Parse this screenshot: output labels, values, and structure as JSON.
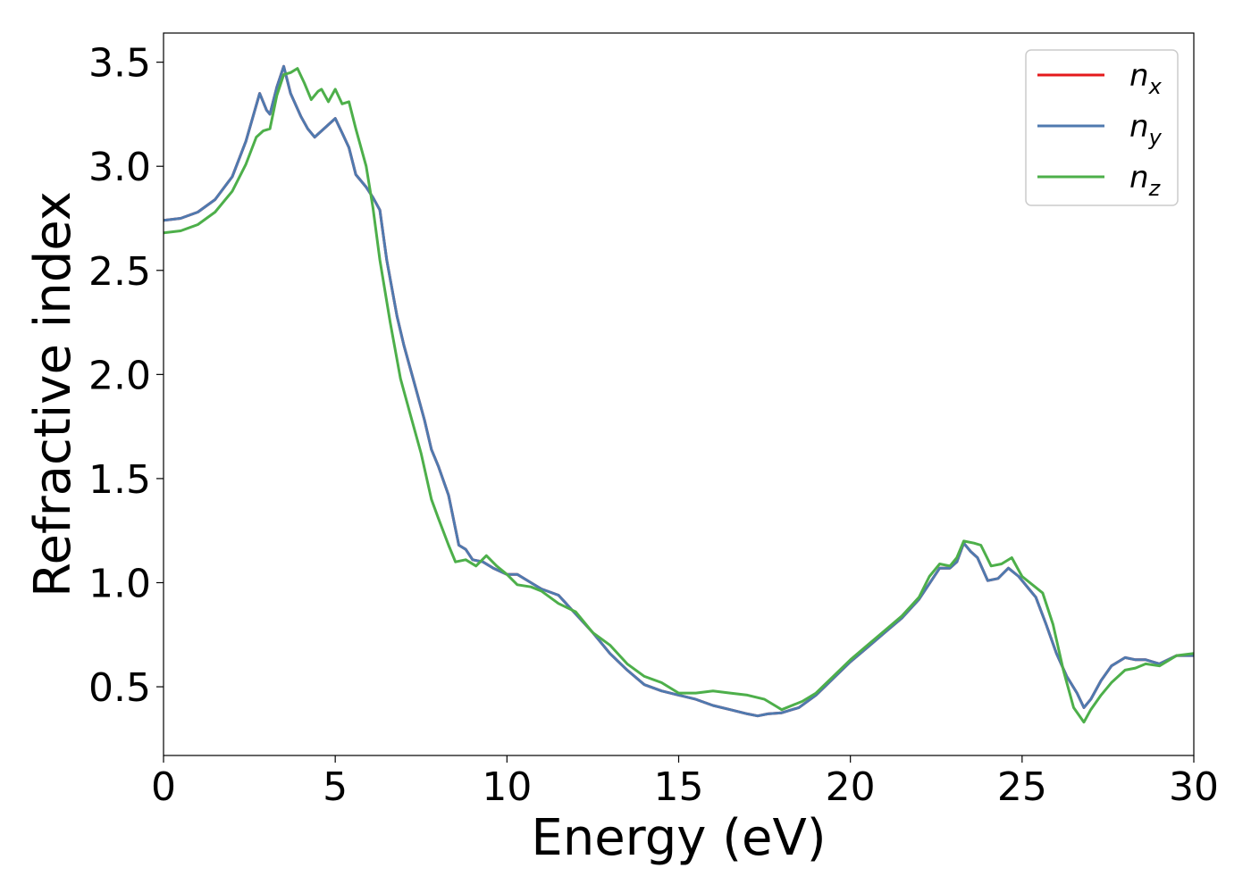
{
  "chart_data": {
    "type": "line",
    "xlabel": "Energy (eV)",
    "ylabel": "Refractive index",
    "xlim": [
      0,
      30
    ],
    "ylim": [
      0.17,
      3.64
    ],
    "xticks": [
      "0",
      "5",
      "10",
      "15",
      "20",
      "25",
      "30"
    ],
    "yticks": [
      "0.5",
      "1.0",
      "1.5",
      "2.0",
      "2.5",
      "3.0",
      "3.5"
    ],
    "grid": false,
    "legend_position": "top-right",
    "series": [
      {
        "name": "n",
        "subscript": "x",
        "color": "#e41a1c",
        "points": [
          [
            0,
            2.74
          ],
          [
            0.5,
            2.75
          ],
          [
            1,
            2.78
          ],
          [
            1.5,
            2.84
          ],
          [
            2,
            2.95
          ],
          [
            2.4,
            3.12
          ],
          [
            2.8,
            3.35
          ],
          [
            3.0,
            3.27
          ],
          [
            3.1,
            3.25
          ],
          [
            3.3,
            3.38
          ],
          [
            3.5,
            3.48
          ],
          [
            3.7,
            3.35
          ],
          [
            4.0,
            3.24
          ],
          [
            4.2,
            3.18
          ],
          [
            4.4,
            3.14
          ],
          [
            4.6,
            3.17
          ],
          [
            4.8,
            3.2
          ],
          [
            5.0,
            3.23
          ],
          [
            5.2,
            3.16
          ],
          [
            5.4,
            3.09
          ],
          [
            5.6,
            2.96
          ],
          [
            5.9,
            2.9
          ],
          [
            6.1,
            2.85
          ],
          [
            6.3,
            2.79
          ],
          [
            6.5,
            2.55
          ],
          [
            6.8,
            2.28
          ],
          [
            7.0,
            2.14
          ],
          [
            7.3,
            1.96
          ],
          [
            7.6,
            1.78
          ],
          [
            7.8,
            1.64
          ],
          [
            8.0,
            1.56
          ],
          [
            8.3,
            1.42
          ],
          [
            8.6,
            1.18
          ],
          [
            8.8,
            1.16
          ],
          [
            9.0,
            1.11
          ],
          [
            9.3,
            1.1
          ],
          [
            9.6,
            1.07
          ],
          [
            10.0,
            1.04
          ],
          [
            10.3,
            1.04
          ],
          [
            10.7,
            1.0
          ],
          [
            11.0,
            0.97
          ],
          [
            11.5,
            0.94
          ],
          [
            12.0,
            0.85
          ],
          [
            12.5,
            0.76
          ],
          [
            13.0,
            0.66
          ],
          [
            13.5,
            0.58
          ],
          [
            14.0,
            0.51
          ],
          [
            14.5,
            0.48
          ],
          [
            15.0,
            0.46
          ],
          [
            15.5,
            0.44
          ],
          [
            16.0,
            0.41
          ],
          [
            16.5,
            0.39
          ],
          [
            17.0,
            0.37
          ],
          [
            17.3,
            0.36
          ],
          [
            17.6,
            0.37
          ],
          [
            18.0,
            0.375
          ],
          [
            18.5,
            0.4
          ],
          [
            19.0,
            0.46
          ],
          [
            19.5,
            0.54
          ],
          [
            20.0,
            0.62
          ],
          [
            20.5,
            0.69
          ],
          [
            21.0,
            0.76
          ],
          [
            21.5,
            0.83
          ],
          [
            22.0,
            0.92
          ],
          [
            22.4,
            1.02
          ],
          [
            22.6,
            1.07
          ],
          [
            22.9,
            1.07
          ],
          [
            23.1,
            1.1
          ],
          [
            23.3,
            1.19
          ],
          [
            23.5,
            1.15
          ],
          [
            23.7,
            1.12
          ],
          [
            24.0,
            1.01
          ],
          [
            24.3,
            1.02
          ],
          [
            24.6,
            1.07
          ],
          [
            24.9,
            1.03
          ],
          [
            25.2,
            0.97
          ],
          [
            25.4,
            0.93
          ],
          [
            25.7,
            0.8
          ],
          [
            26.0,
            0.66
          ],
          [
            26.3,
            0.55
          ],
          [
            26.6,
            0.47
          ],
          [
            26.8,
            0.4
          ],
          [
            27.0,
            0.44
          ],
          [
            27.3,
            0.53
          ],
          [
            27.6,
            0.6
          ],
          [
            28.0,
            0.64
          ],
          [
            28.3,
            0.63
          ],
          [
            28.6,
            0.63
          ],
          [
            29.0,
            0.61
          ],
          [
            29.5,
            0.65
          ],
          [
            30.0,
            0.65
          ]
        ]
      },
      {
        "name": "n",
        "subscript": "y",
        "color": "#4f7aaf",
        "points": [
          [
            0,
            2.74
          ],
          [
            0.5,
            2.75
          ],
          [
            1,
            2.78
          ],
          [
            1.5,
            2.84
          ],
          [
            2,
            2.95
          ],
          [
            2.4,
            3.12
          ],
          [
            2.8,
            3.35
          ],
          [
            3.0,
            3.27
          ],
          [
            3.1,
            3.25
          ],
          [
            3.3,
            3.38
          ],
          [
            3.5,
            3.48
          ],
          [
            3.7,
            3.35
          ],
          [
            4.0,
            3.24
          ],
          [
            4.2,
            3.18
          ],
          [
            4.4,
            3.14
          ],
          [
            4.6,
            3.17
          ],
          [
            4.8,
            3.2
          ],
          [
            5.0,
            3.23
          ],
          [
            5.2,
            3.16
          ],
          [
            5.4,
            3.09
          ],
          [
            5.6,
            2.96
          ],
          [
            5.9,
            2.9
          ],
          [
            6.1,
            2.85
          ],
          [
            6.3,
            2.79
          ],
          [
            6.5,
            2.55
          ],
          [
            6.8,
            2.28
          ],
          [
            7.0,
            2.14
          ],
          [
            7.3,
            1.96
          ],
          [
            7.6,
            1.78
          ],
          [
            7.8,
            1.64
          ],
          [
            8.0,
            1.56
          ],
          [
            8.3,
            1.42
          ],
          [
            8.6,
            1.18
          ],
          [
            8.8,
            1.16
          ],
          [
            9.0,
            1.11
          ],
          [
            9.3,
            1.1
          ],
          [
            9.6,
            1.07
          ],
          [
            10.0,
            1.04
          ],
          [
            10.3,
            1.04
          ],
          [
            10.7,
            1.0
          ],
          [
            11.0,
            0.97
          ],
          [
            11.5,
            0.94
          ],
          [
            12.0,
            0.85
          ],
          [
            12.5,
            0.76
          ],
          [
            13.0,
            0.66
          ],
          [
            13.5,
            0.58
          ],
          [
            14.0,
            0.51
          ],
          [
            14.5,
            0.48
          ],
          [
            15.0,
            0.46
          ],
          [
            15.5,
            0.44
          ],
          [
            16.0,
            0.41
          ],
          [
            16.5,
            0.39
          ],
          [
            17.0,
            0.37
          ],
          [
            17.3,
            0.36
          ],
          [
            17.6,
            0.37
          ],
          [
            18.0,
            0.375
          ],
          [
            18.5,
            0.4
          ],
          [
            19.0,
            0.46
          ],
          [
            19.5,
            0.54
          ],
          [
            20.0,
            0.62
          ],
          [
            20.5,
            0.69
          ],
          [
            21.0,
            0.76
          ],
          [
            21.5,
            0.83
          ],
          [
            22.0,
            0.92
          ],
          [
            22.4,
            1.02
          ],
          [
            22.6,
            1.07
          ],
          [
            22.9,
            1.07
          ],
          [
            23.1,
            1.1
          ],
          [
            23.3,
            1.19
          ],
          [
            23.5,
            1.15
          ],
          [
            23.7,
            1.12
          ],
          [
            24.0,
            1.01
          ],
          [
            24.3,
            1.02
          ],
          [
            24.6,
            1.07
          ],
          [
            24.9,
            1.03
          ],
          [
            25.2,
            0.97
          ],
          [
            25.4,
            0.93
          ],
          [
            25.7,
            0.8
          ],
          [
            26.0,
            0.66
          ],
          [
            26.3,
            0.55
          ],
          [
            26.6,
            0.47
          ],
          [
            26.8,
            0.4
          ],
          [
            27.0,
            0.44
          ],
          [
            27.3,
            0.53
          ],
          [
            27.6,
            0.6
          ],
          [
            28.0,
            0.64
          ],
          [
            28.3,
            0.63
          ],
          [
            28.6,
            0.63
          ],
          [
            29.0,
            0.61
          ],
          [
            29.5,
            0.65
          ],
          [
            30.0,
            0.65
          ]
        ]
      },
      {
        "name": "n",
        "subscript": "z",
        "color": "#4daf4a",
        "points": [
          [
            0,
            2.68
          ],
          [
            0.5,
            2.69
          ],
          [
            1,
            2.72
          ],
          [
            1.5,
            2.78
          ],
          [
            2,
            2.88
          ],
          [
            2.4,
            3.01
          ],
          [
            2.7,
            3.14
          ],
          [
            2.9,
            3.17
          ],
          [
            3.1,
            3.18
          ],
          [
            3.3,
            3.34
          ],
          [
            3.5,
            3.44
          ],
          [
            3.7,
            3.45
          ],
          [
            3.9,
            3.47
          ],
          [
            4.1,
            3.4
          ],
          [
            4.3,
            3.32
          ],
          [
            4.5,
            3.36
          ],
          [
            4.6,
            3.37
          ],
          [
            4.8,
            3.31
          ],
          [
            5.0,
            3.37
          ],
          [
            5.2,
            3.3
          ],
          [
            5.4,
            3.31
          ],
          [
            5.6,
            3.18
          ],
          [
            5.9,
            3.0
          ],
          [
            6.1,
            2.8
          ],
          [
            6.3,
            2.55
          ],
          [
            6.6,
            2.25
          ],
          [
            6.9,
            1.98
          ],
          [
            7.2,
            1.8
          ],
          [
            7.5,
            1.62
          ],
          [
            7.8,
            1.4
          ],
          [
            8.0,
            1.31
          ],
          [
            8.3,
            1.18
          ],
          [
            8.5,
            1.1
          ],
          [
            8.8,
            1.11
          ],
          [
            9.1,
            1.08
          ],
          [
            9.4,
            1.13
          ],
          [
            9.7,
            1.08
          ],
          [
            10.0,
            1.04
          ],
          [
            10.3,
            0.99
          ],
          [
            10.7,
            0.98
          ],
          [
            11.0,
            0.96
          ],
          [
            11.5,
            0.9
          ],
          [
            12.0,
            0.86
          ],
          [
            12.5,
            0.76
          ],
          [
            13.0,
            0.7
          ],
          [
            13.5,
            0.61
          ],
          [
            14.0,
            0.55
          ],
          [
            14.5,
            0.52
          ],
          [
            15.0,
            0.47
          ],
          [
            15.5,
            0.47
          ],
          [
            16.0,
            0.48
          ],
          [
            16.5,
            0.47
          ],
          [
            17.0,
            0.46
          ],
          [
            17.5,
            0.44
          ],
          [
            17.8,
            0.41
          ],
          [
            18.0,
            0.39
          ],
          [
            18.3,
            0.41
          ],
          [
            18.6,
            0.43
          ],
          [
            19.0,
            0.47
          ],
          [
            19.5,
            0.55
          ],
          [
            20.0,
            0.63
          ],
          [
            20.5,
            0.7
          ],
          [
            21.0,
            0.77
          ],
          [
            21.5,
            0.84
          ],
          [
            22.0,
            0.93
          ],
          [
            22.3,
            1.03
          ],
          [
            22.6,
            1.09
          ],
          [
            22.9,
            1.08
          ],
          [
            23.1,
            1.12
          ],
          [
            23.3,
            1.2
          ],
          [
            23.6,
            1.19
          ],
          [
            23.8,
            1.18
          ],
          [
            24.1,
            1.08
          ],
          [
            24.4,
            1.09
          ],
          [
            24.7,
            1.12
          ],
          [
            25.0,
            1.03
          ],
          [
            25.3,
            0.99
          ],
          [
            25.6,
            0.95
          ],
          [
            25.9,
            0.8
          ],
          [
            26.2,
            0.58
          ],
          [
            26.5,
            0.4
          ],
          [
            26.8,
            0.33
          ],
          [
            27.0,
            0.39
          ],
          [
            27.3,
            0.46
          ],
          [
            27.6,
            0.52
          ],
          [
            28.0,
            0.58
          ],
          [
            28.3,
            0.59
          ],
          [
            28.6,
            0.61
          ],
          [
            29.0,
            0.6
          ],
          [
            29.5,
            0.65
          ],
          [
            30.0,
            0.66
          ]
        ]
      }
    ]
  }
}
